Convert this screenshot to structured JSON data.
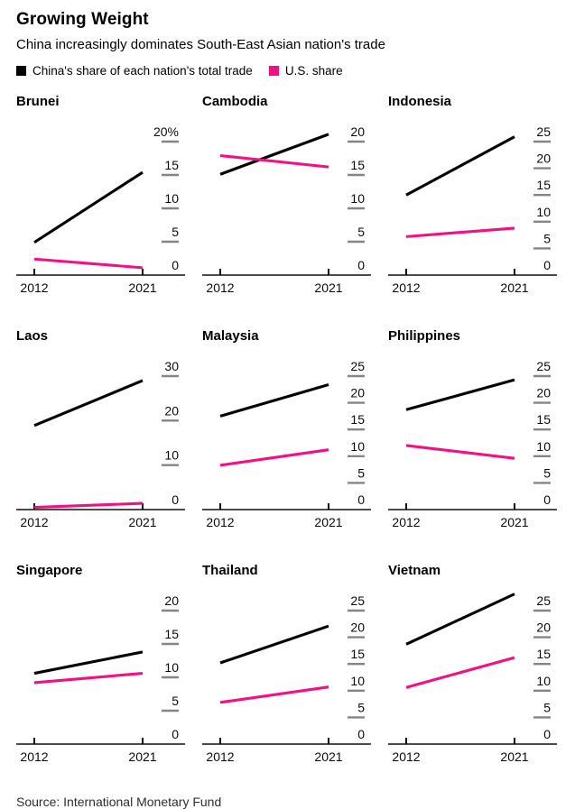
{
  "header": {
    "title": "Growing Weight",
    "subtitle": "China increasingly dominates South-East Asian nation's trade"
  },
  "legend": {
    "china": {
      "label": "China's share of each nation's total trade",
      "color": "#000000"
    },
    "us": {
      "label": "U.S. share",
      "color": "#f50f85"
    }
  },
  "footer": {
    "source": "Source: International Monetary Fund"
  },
  "colors": {
    "china_line": "#000000",
    "us_line": "#f50f85",
    "tick_dash": "#858585",
    "axis": "#111111",
    "text": "#0a0a0a"
  },
  "chart_data": [
    {
      "type": "line",
      "title": "Brunei",
      "x": [
        2012,
        2021
      ],
      "x_tick_labels": [
        "2012",
        "2021"
      ],
      "ylim": [
        0,
        20
      ],
      "y_ticks": [
        0,
        5,
        10,
        15,
        20
      ],
      "y_tick_labels": [
        "0",
        "5",
        "10",
        "15",
        "20%"
      ],
      "series": [
        {
          "name": "China's share",
          "values": [
            4.9,
            15.4
          ]
        },
        {
          "name": "U.S. share",
          "values": [
            2.4,
            1.1
          ]
        }
      ]
    },
    {
      "type": "line",
      "title": "Cambodia",
      "x": [
        2012,
        2021
      ],
      "x_tick_labels": [
        "2012",
        "2021"
      ],
      "ylim": [
        0,
        20
      ],
      "y_ticks": [
        0,
        5,
        10,
        15,
        20
      ],
      "y_tick_labels": [
        "0",
        "5",
        "10",
        "15",
        "20"
      ],
      "series": [
        {
          "name": "China's share",
          "values": [
            15.1,
            21.1
          ]
        },
        {
          "name": "U.S. share",
          "values": [
            17.9,
            16.2
          ]
        }
      ]
    },
    {
      "type": "line",
      "title": "Indonesia",
      "x": [
        2012,
        2021
      ],
      "x_tick_labels": [
        "2012",
        "2021"
      ],
      "ylim": [
        0,
        25
      ],
      "y_ticks": [
        0,
        5,
        10,
        15,
        20,
        25
      ],
      "y_tick_labels": [
        "0",
        "5",
        "10",
        "15",
        "20",
        "25"
      ],
      "series": [
        {
          "name": "China's share",
          "values": [
            15.0,
            25.9
          ]
        },
        {
          "name": "U.S. share",
          "values": [
            7.2,
            8.8
          ]
        }
      ]
    },
    {
      "type": "line",
      "title": "Laos",
      "x": [
        2012,
        2021
      ],
      "x_tick_labels": [
        "2012",
        "2021"
      ],
      "ylim": [
        0,
        30
      ],
      "y_ticks": [
        0,
        10,
        20,
        30
      ],
      "y_tick_labels": [
        "0",
        "10",
        "20",
        "30"
      ],
      "series": [
        {
          "name": "China's share",
          "values": [
            18.9,
            29.0
          ]
        },
        {
          "name": "U.S. share",
          "values": [
            0.5,
            1.4
          ]
        }
      ]
    },
    {
      "type": "line",
      "title": "Malaysia",
      "x": [
        2012,
        2021
      ],
      "x_tick_labels": [
        "2012",
        "2021"
      ],
      "ylim": [
        0,
        25
      ],
      "y_ticks": [
        0,
        5,
        10,
        15,
        20,
        25
      ],
      "y_tick_labels": [
        "0",
        "5",
        "10",
        "15",
        "20",
        "25"
      ],
      "series": [
        {
          "name": "China's share",
          "values": [
            17.5,
            23.4
          ]
        },
        {
          "name": "U.S. share",
          "values": [
            8.3,
            11.2
          ]
        }
      ]
    },
    {
      "type": "line",
      "title": "Philippines",
      "x": [
        2012,
        2021
      ],
      "x_tick_labels": [
        "2012",
        "2021"
      ],
      "ylim": [
        0,
        25
      ],
      "y_ticks": [
        0,
        5,
        10,
        15,
        20,
        25
      ],
      "y_tick_labels": [
        "0",
        "5",
        "10",
        "15",
        "20",
        "25"
      ],
      "series": [
        {
          "name": "China's share",
          "values": [
            18.7,
            24.3
          ]
        },
        {
          "name": "U.S. share",
          "values": [
            12.0,
            9.6
          ]
        }
      ]
    },
    {
      "type": "line",
      "title": "Singapore",
      "x": [
        2012,
        2021
      ],
      "x_tick_labels": [
        "2012",
        "2021"
      ],
      "ylim": [
        0,
        20
      ],
      "y_ticks": [
        0,
        5,
        10,
        15,
        20
      ],
      "y_tick_labels": [
        "0",
        "5",
        "10",
        "15",
        "20"
      ],
      "series": [
        {
          "name": "China's share",
          "values": [
            10.6,
            13.8
          ]
        },
        {
          "name": "U.S. share",
          "values": [
            9.2,
            10.6
          ]
        }
      ]
    },
    {
      "type": "line",
      "title": "Thailand",
      "x": [
        2012,
        2021
      ],
      "x_tick_labels": [
        "2012",
        "2021"
      ],
      "ylim": [
        0,
        25
      ],
      "y_ticks": [
        0,
        5,
        10,
        15,
        20,
        25
      ],
      "y_tick_labels": [
        "0",
        "5",
        "10",
        "15",
        "20",
        "25"
      ],
      "series": [
        {
          "name": "China's share",
          "values": [
            15.2,
            22.1
          ]
        },
        {
          "name": "U.S. share",
          "values": [
            7.8,
            10.7
          ]
        }
      ]
    },
    {
      "type": "line",
      "title": "Vietnam",
      "x": [
        2012,
        2021
      ],
      "x_tick_labels": [
        "2012",
        "2021"
      ],
      "ylim": [
        0,
        25
      ],
      "y_ticks": [
        0,
        5,
        10,
        15,
        20,
        25
      ],
      "y_tick_labels": [
        "0",
        "5",
        "10",
        "15",
        "20",
        "25"
      ],
      "series": [
        {
          "name": "China's share",
          "values": [
            18.7,
            28.1
          ]
        },
        {
          "name": "U.S. share",
          "values": [
            10.6,
            16.2
          ]
        }
      ]
    }
  ]
}
